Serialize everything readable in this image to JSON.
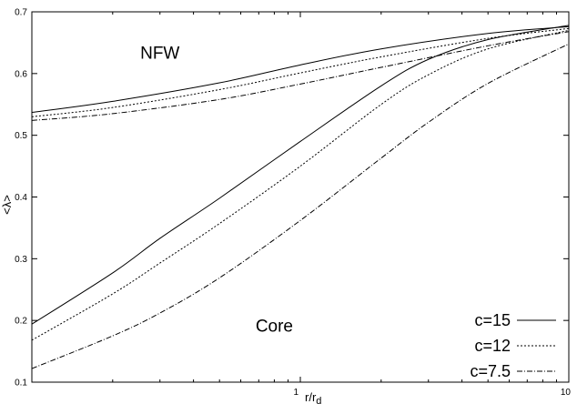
{
  "chart_data": {
    "type": "line",
    "x_scale": "log",
    "xlim": [
      0.1,
      10
    ],
    "ylim": [
      0.1,
      0.7
    ],
    "xlabel": "r/r_d",
    "ylabel": "<λ>",
    "x_ticks": [
      {
        "value": 1,
        "label": "1"
      },
      {
        "value": 10,
        "label": "10"
      }
    ],
    "y_ticks": [
      {
        "value": 0.1,
        "label": "0.1"
      },
      {
        "value": 0.2,
        "label": "0.2"
      },
      {
        "value": 0.3,
        "label": "0.3"
      },
      {
        "value": 0.4,
        "label": "0.4"
      },
      {
        "value": 0.5,
        "label": "0.5"
      },
      {
        "value": 0.6,
        "label": "0.6"
      },
      {
        "value": 0.7,
        "label": "0.7"
      }
    ],
    "annotations": [
      {
        "text": "NFW",
        "x": 0.3,
        "y": 0.624
      },
      {
        "text": "Core",
        "x": 0.8,
        "y": 0.182
      }
    ],
    "legend_position": "bottom-right",
    "legend": [
      {
        "label": "c=15",
        "style": "solid"
      },
      {
        "label": "c=12",
        "style": "dotted"
      },
      {
        "label": "c=7.5",
        "style": "dashdot"
      }
    ],
    "series": [
      {
        "group": "NFW",
        "style": "solid",
        "x": [
          0.1,
          0.2,
          0.5,
          1,
          2,
          5,
          10
        ],
        "y": [
          0.537,
          0.555,
          0.585,
          0.614,
          0.64,
          0.665,
          0.676
        ]
      },
      {
        "group": "NFW",
        "style": "dotted",
        "x": [
          0.1,
          0.2,
          0.5,
          1,
          2,
          5,
          10
        ],
        "y": [
          0.53,
          0.545,
          0.574,
          0.601,
          0.627,
          0.657,
          0.673
        ]
      },
      {
        "group": "NFW",
        "style": "dashdot",
        "x": [
          0.1,
          0.2,
          0.5,
          1,
          2,
          5,
          10
        ],
        "y": [
          0.524,
          0.535,
          0.558,
          0.583,
          0.61,
          0.645,
          0.668
        ]
      },
      {
        "group": "Core",
        "style": "solid",
        "x": [
          0.1,
          0.2,
          0.3,
          0.5,
          1,
          2,
          3,
          5,
          10
        ],
        "y": [
          0.194,
          0.277,
          0.333,
          0.398,
          0.49,
          0.58,
          0.623,
          0.655,
          0.678
        ]
      },
      {
        "group": "Core",
        "style": "dotted",
        "x": [
          0.1,
          0.2,
          0.3,
          0.5,
          1,
          2,
          3,
          5,
          10
        ],
        "y": [
          0.168,
          0.243,
          0.293,
          0.357,
          0.45,
          0.55,
          0.598,
          0.64,
          0.67
        ]
      },
      {
        "group": "Core",
        "style": "dashdot",
        "x": [
          0.1,
          0.2,
          0.3,
          0.5,
          1,
          2,
          3,
          5,
          10
        ],
        "y": [
          0.122,
          0.175,
          0.212,
          0.269,
          0.362,
          0.463,
          0.521,
          0.584,
          0.648
        ]
      }
    ]
  }
}
